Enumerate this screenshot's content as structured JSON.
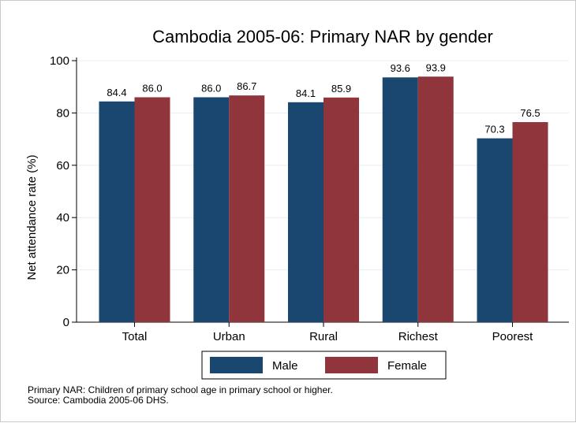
{
  "chart_data": {
    "type": "bar",
    "title": "Cambodia 2005-06: Primary NAR by gender",
    "ylabel": "Net attendance rate (%)",
    "xlabel": "",
    "categories": [
      "Total",
      "Urban",
      "Rural",
      "Richest",
      "Poorest"
    ],
    "series": [
      {
        "name": "Male",
        "values": [
          84.4,
          86.0,
          84.1,
          93.6,
          70.3
        ],
        "color": "#1a476f",
        "labels": [
          "84.4",
          "86.0",
          "84.1",
          "93.6",
          "70.3"
        ]
      },
      {
        "name": "Female",
        "values": [
          86.0,
          86.7,
          85.9,
          93.9,
          76.5
        ],
        "color": "#90353b",
        "labels": [
          "86.0",
          "86.7",
          "85.9",
          "93.9",
          "76.5"
        ]
      }
    ],
    "ylim": [
      0,
      100
    ],
    "yticks": [
      0,
      20,
      40,
      60,
      80,
      100
    ],
    "ytick_labels": [
      "0",
      "20",
      "40",
      "60",
      "80",
      "100"
    ],
    "grid": true,
    "legend_position": "bottom"
  },
  "notes": {
    "line1": "Primary NAR: Children of primary school age in primary school or higher.",
    "line2": "Source: Cambodia 2005-06 DHS."
  }
}
